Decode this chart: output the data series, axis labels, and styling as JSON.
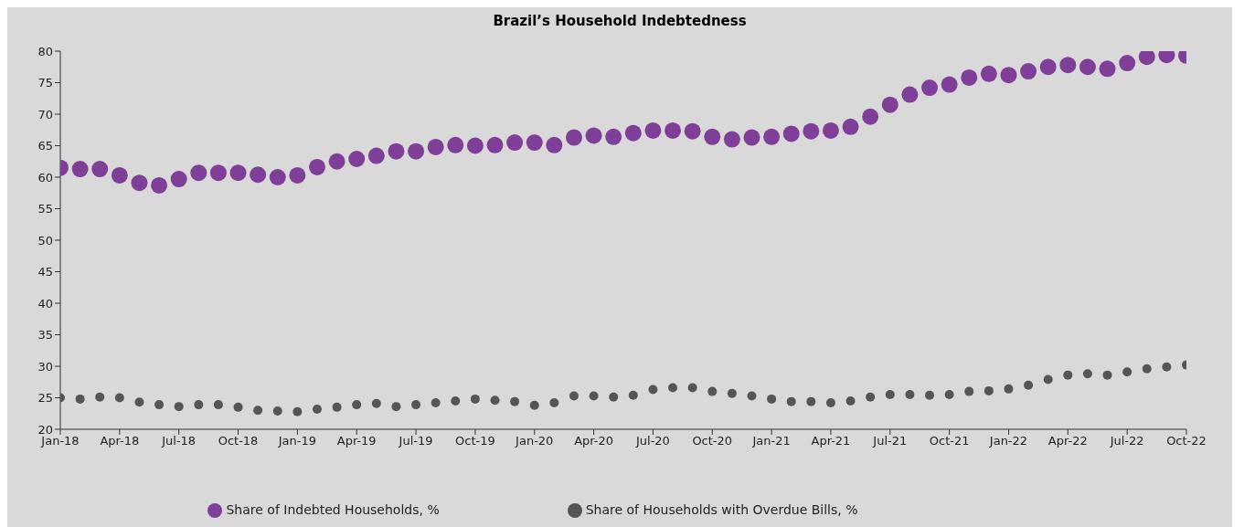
{
  "chart_data": {
    "type": "scatter",
    "title": "Brazil’s Household Indebtedness",
    "categories": [
      "Jan-18",
      null,
      null,
      "Apr-18",
      null,
      null,
      "Jul-18",
      null,
      null,
      "Oct-18",
      null,
      null,
      "Jan-19",
      null,
      null,
      "Apr-19",
      null,
      null,
      "Jul-19",
      null,
      null,
      "Oct-19",
      null,
      null,
      "Jan-20",
      null,
      null,
      "Apr-20",
      null,
      null,
      "Jul-20",
      null,
      null,
      "Oct-20",
      null,
      null,
      "Jan-21",
      null,
      null,
      "Apr-21",
      null,
      null,
      "Jul-21",
      null,
      null,
      "Oct-21",
      null,
      null,
      "Jan-22",
      null,
      null,
      "Apr-22",
      null,
      null,
      "Jul-22",
      null,
      null,
      "Oct-22"
    ],
    "series": [
      {
        "name": "Share of Indebted Households, %",
        "color": "#7f3f98",
        "values": [
          61.5,
          61.3,
          61.3,
          60.3,
          59.1,
          58.7,
          59.7,
          60.7,
          60.7,
          60.7,
          60.4,
          60.0,
          60.3,
          61.6,
          62.5,
          62.9,
          63.4,
          64.1,
          64.1,
          64.8,
          65.1,
          65.0,
          65.1,
          65.5,
          65.5,
          65.1,
          66.3,
          66.6,
          66.4,
          67.0,
          67.4,
          67.4,
          67.3,
          66.4,
          66.0,
          66.3,
          66.4,
          66.9,
          67.3,
          67.4,
          68.0,
          69.6,
          71.5,
          73.1,
          74.2,
          74.7,
          75.8,
          76.4,
          76.2,
          76.8,
          77.5,
          77.8,
          77.5,
          77.2,
          78.1,
          79.1,
          79.4,
          79.3
        ]
      },
      {
        "name": "Share of Households with Overdue Bills, %",
        "color": "#555555",
        "values": [
          25.0,
          24.8,
          25.1,
          25.0,
          24.3,
          23.9,
          23.6,
          23.9,
          23.9,
          23.5,
          23.0,
          22.9,
          22.8,
          23.2,
          23.5,
          23.9,
          24.1,
          23.6,
          23.9,
          24.2,
          24.5,
          24.8,
          24.6,
          24.4,
          23.8,
          24.2,
          25.3,
          25.3,
          25.1,
          25.4,
          26.3,
          26.6,
          26.6,
          26.0,
          25.7,
          25.3,
          24.8,
          24.4,
          24.4,
          24.2,
          24.5,
          25.1,
          25.5,
          25.5,
          25.4,
          25.5,
          26.0,
          26.1,
          26.4,
          27.0,
          27.9,
          28.6,
          28.8,
          28.6,
          29.1,
          29.6,
          29.9,
          30.2
        ]
      }
    ],
    "ylim": [
      20,
      80
    ],
    "yticks": [
      20,
      25,
      30,
      35,
      40,
      45,
      50,
      55,
      60,
      65,
      70,
      75,
      80
    ],
    "grid": false,
    "legend": "bottom",
    "marker": "circle"
  }
}
